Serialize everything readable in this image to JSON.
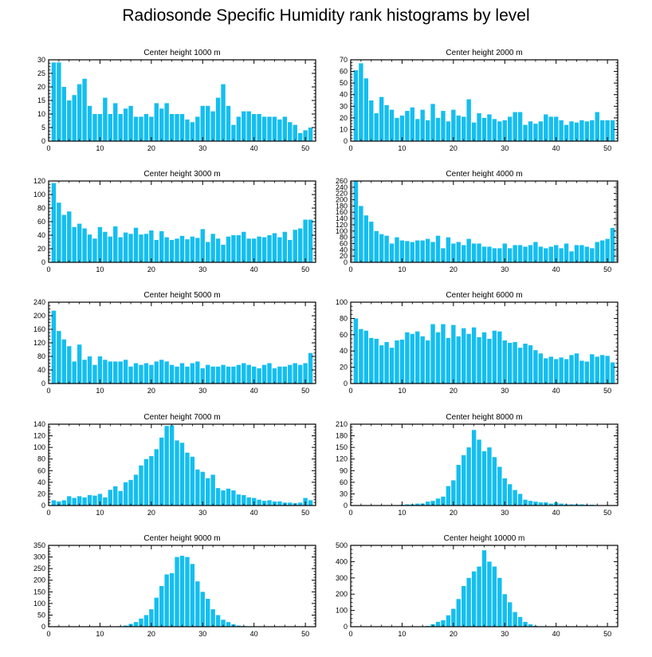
{
  "title": "Radiosonde Specific Humidity rank histograms by level",
  "colors": {
    "bar": "#14BEF0",
    "axis": "#000000"
  },
  "chart_data": [
    {
      "type": "bar",
      "title": "Center height 1000 m",
      "ylim": [
        0,
        30
      ],
      "xlim": [
        0,
        52
      ],
      "yticks": [
        0,
        5,
        10,
        15,
        20,
        25,
        30
      ],
      "xticks": [
        0,
        10,
        20,
        30,
        40,
        50
      ],
      "x": [
        1,
        2,
        3,
        4,
        5,
        6,
        7,
        8,
        9,
        10,
        11,
        12,
        13,
        14,
        15,
        16,
        17,
        18,
        19,
        20,
        21,
        22,
        23,
        24,
        25,
        26,
        27,
        28,
        29,
        30,
        31,
        32,
        33,
        34,
        35,
        36,
        37,
        38,
        39,
        40,
        41,
        42,
        43,
        44,
        45,
        46,
        47,
        48,
        49,
        50,
        51
      ],
      "values": [
        29,
        29,
        20,
        15,
        17,
        21,
        23,
        13,
        10,
        10,
        16,
        10,
        14,
        10,
        12,
        13,
        9,
        9,
        10,
        9,
        14,
        12,
        14,
        10,
        10,
        10,
        8,
        7,
        9,
        13,
        13,
        11,
        16,
        21,
        13,
        6,
        9,
        11,
        11,
        10,
        10,
        9,
        9,
        9,
        8,
        9,
        7,
        6,
        3,
        4,
        5
      ]
    },
    {
      "type": "bar",
      "title": "Center height 2000 m",
      "ylim": [
        0,
        70
      ],
      "xlim": [
        0,
        52
      ],
      "yticks": [
        0,
        10,
        20,
        30,
        40,
        50,
        60,
        70
      ],
      "xticks": [
        0,
        10,
        20,
        30,
        40,
        50
      ],
      "x": [
        1,
        2,
        3,
        4,
        5,
        6,
        7,
        8,
        9,
        10,
        11,
        12,
        13,
        14,
        15,
        16,
        17,
        18,
        19,
        20,
        21,
        22,
        23,
        24,
        25,
        26,
        27,
        28,
        29,
        30,
        31,
        32,
        33,
        34,
        35,
        36,
        37,
        38,
        39,
        40,
        41,
        42,
        43,
        44,
        45,
        46,
        47,
        48,
        49,
        50,
        51
      ],
      "values": [
        61,
        67,
        54,
        35,
        24,
        38,
        31,
        27,
        20,
        22,
        26,
        29,
        19,
        27,
        18,
        32,
        20,
        26,
        17,
        27,
        22,
        21,
        36,
        16,
        24,
        20,
        23,
        19,
        17,
        18,
        21,
        25,
        25,
        14,
        17,
        15,
        17,
        23,
        21,
        21,
        18,
        14,
        17,
        16,
        18,
        17,
        18,
        25,
        18,
        18,
        18
      ]
    },
    {
      "type": "bar",
      "title": "Center height 3000 m",
      "ylim": [
        0,
        120
      ],
      "xlim": [
        0,
        52
      ],
      "yticks": [
        0,
        20,
        40,
        60,
        80,
        100,
        120
      ],
      "xticks": [
        0,
        10,
        20,
        30,
        40,
        50
      ],
      "x": [
        1,
        2,
        3,
        4,
        5,
        6,
        7,
        8,
        9,
        10,
        11,
        12,
        13,
        14,
        15,
        16,
        17,
        18,
        19,
        20,
        21,
        22,
        23,
        24,
        25,
        26,
        27,
        28,
        29,
        30,
        31,
        32,
        33,
        34,
        35,
        36,
        37,
        38,
        39,
        40,
        41,
        42,
        43,
        44,
        45,
        46,
        47,
        48,
        49,
        50,
        51
      ],
      "values": [
        117,
        88,
        70,
        75,
        52,
        57,
        50,
        41,
        35,
        52,
        45,
        38,
        53,
        37,
        44,
        42,
        51,
        41,
        42,
        47,
        33,
        46,
        37,
        33,
        35,
        39,
        34,
        38,
        36,
        49,
        30,
        42,
        35,
        26,
        38,
        40,
        40,
        45,
        35,
        35,
        38,
        37,
        40,
        43,
        37,
        45,
        33,
        48,
        50,
        63,
        63
      ]
    },
    {
      "type": "bar",
      "title": "Center height 4000 m",
      "ylim": [
        0,
        260
      ],
      "xlim": [
        0,
        52
      ],
      "yticks": [
        0,
        20,
        40,
        60,
        80,
        100,
        120,
        140,
        160,
        180,
        200,
        220,
        240,
        260
      ],
      "xticks": [
        0,
        10,
        20,
        30,
        40,
        50
      ],
      "x": [
        1,
        2,
        3,
        4,
        5,
        6,
        7,
        8,
        9,
        10,
        11,
        12,
        13,
        14,
        15,
        16,
        17,
        18,
        19,
        20,
        21,
        22,
        23,
        24,
        25,
        26,
        27,
        28,
        29,
        30,
        31,
        32,
        33,
        34,
        35,
        36,
        37,
        38,
        39,
        40,
        41,
        42,
        43,
        44,
        45,
        46,
        47,
        48,
        49,
        50,
        51
      ],
      "values": [
        260,
        180,
        150,
        130,
        100,
        90,
        85,
        60,
        80,
        70,
        68,
        65,
        70,
        70,
        75,
        65,
        85,
        45,
        80,
        60,
        65,
        55,
        75,
        60,
        60,
        50,
        50,
        45,
        45,
        60,
        45,
        55,
        55,
        50,
        55,
        65,
        50,
        45,
        50,
        55,
        45,
        60,
        35,
        55,
        55,
        50,
        45,
        65,
        70,
        75,
        110
      ]
    },
    {
      "type": "bar",
      "title": "Center height 5000 m",
      "ylim": [
        0,
        240
      ],
      "xlim": [
        0,
        52
      ],
      "yticks": [
        0,
        40,
        80,
        120,
        160,
        200,
        240
      ],
      "xticks": [
        0,
        10,
        20,
        30,
        40,
        50
      ],
      "x": [
        1,
        2,
        3,
        4,
        5,
        6,
        7,
        8,
        9,
        10,
        11,
        12,
        13,
        14,
        15,
        16,
        17,
        18,
        19,
        20,
        21,
        22,
        23,
        24,
        25,
        26,
        27,
        28,
        29,
        30,
        31,
        32,
        33,
        34,
        35,
        36,
        37,
        38,
        39,
        40,
        41,
        42,
        43,
        44,
        45,
        46,
        47,
        48,
        49,
        50,
        51
      ],
      "values": [
        215,
        155,
        130,
        110,
        65,
        115,
        70,
        80,
        55,
        80,
        70,
        65,
        65,
        65,
        70,
        50,
        60,
        55,
        60,
        55,
        65,
        70,
        65,
        55,
        50,
        60,
        50,
        60,
        65,
        45,
        55,
        50,
        50,
        55,
        50,
        50,
        55,
        60,
        55,
        50,
        45,
        55,
        60,
        45,
        50,
        50,
        55,
        60,
        55,
        60,
        90
      ]
    },
    {
      "type": "bar",
      "title": "Center height 6000 m",
      "ylim": [
        0,
        100
      ],
      "xlim": [
        0,
        52
      ],
      "yticks": [
        0,
        20,
        40,
        60,
        80,
        100
      ],
      "xticks": [
        0,
        10,
        20,
        30,
        40,
        50
      ],
      "x": [
        1,
        2,
        3,
        4,
        5,
        6,
        7,
        8,
        9,
        10,
        11,
        12,
        13,
        14,
        15,
        16,
        17,
        18,
        19,
        20,
        21,
        22,
        23,
        24,
        25,
        26,
        27,
        28,
        29,
        30,
        31,
        32,
        33,
        34,
        35,
        36,
        37,
        38,
        39,
        40,
        41,
        42,
        43,
        44,
        45,
        46,
        47,
        48,
        49,
        50,
        51
      ],
      "values": [
        80,
        67,
        65,
        56,
        55,
        47,
        51,
        44,
        53,
        54,
        63,
        61,
        64,
        58,
        53,
        73,
        63,
        73,
        56,
        72,
        58,
        68,
        61,
        69,
        57,
        63,
        55,
        65,
        64,
        53,
        50,
        51,
        44,
        49,
        47,
        41,
        37,
        31,
        33,
        30,
        32,
        30,
        35,
        37,
        28,
        27,
        36,
        33,
        35,
        34,
        26
      ]
    },
    {
      "type": "bar",
      "title": "Center height 7000 m",
      "ylim": [
        0,
        140
      ],
      "xlim": [
        0,
        52
      ],
      "yticks": [
        0,
        20,
        40,
        60,
        80,
        100,
        120,
        140
      ],
      "xticks": [
        0,
        10,
        20,
        30,
        40,
        50
      ],
      "x": [
        1,
        2,
        3,
        4,
        5,
        6,
        7,
        8,
        9,
        10,
        11,
        12,
        13,
        14,
        15,
        16,
        17,
        18,
        19,
        20,
        21,
        22,
        23,
        24,
        25,
        26,
        27,
        28,
        29,
        30,
        31,
        32,
        33,
        34,
        35,
        36,
        37,
        38,
        39,
        40,
        41,
        42,
        43,
        44,
        45,
        46,
        47,
        48,
        49,
        50,
        51
      ],
      "values": [
        9,
        7,
        9,
        16,
        13,
        16,
        14,
        18,
        17,
        20,
        14,
        27,
        33,
        25,
        40,
        44,
        53,
        69,
        80,
        85,
        97,
        117,
        137,
        138,
        112,
        108,
        91,
        84,
        62,
        58,
        47,
        53,
        30,
        26,
        29,
        26,
        19,
        18,
        14,
        13,
        10,
        8,
        9,
        7,
        7,
        5,
        5,
        4,
        5,
        13,
        9
      ]
    },
    {
      "type": "bar",
      "title": "Center height 8000 m",
      "ylim": [
        0,
        210
      ],
      "xlim": [
        0,
        52
      ],
      "yticks": [
        0,
        30,
        60,
        90,
        120,
        150,
        180,
        210
      ],
      "xticks": [
        0,
        10,
        20,
        30,
        40,
        50
      ],
      "x": [
        1,
        2,
        3,
        4,
        5,
        6,
        7,
        8,
        9,
        10,
        11,
        12,
        13,
        14,
        15,
        16,
        17,
        18,
        19,
        20,
        21,
        22,
        23,
        24,
        25,
        26,
        27,
        28,
        29,
        30,
        31,
        32,
        33,
        34,
        35,
        36,
        37,
        38,
        39,
        40,
        41,
        42,
        43,
        44,
        45,
        46,
        47,
        48,
        49,
        50,
        51
      ],
      "values": [
        0,
        0,
        0,
        0,
        0,
        0,
        0,
        0,
        0,
        2,
        3,
        3,
        5,
        5,
        10,
        12,
        18,
        23,
        50,
        65,
        105,
        130,
        150,
        195,
        170,
        140,
        150,
        125,
        100,
        70,
        55,
        40,
        30,
        15,
        12,
        10,
        8,
        8,
        5,
        8,
        5,
        3,
        3,
        3,
        3,
        2,
        2,
        1,
        1,
        0,
        0
      ]
    },
    {
      "type": "bar",
      "title": "Center height 9000 m",
      "ylim": [
        0,
        350
      ],
      "xlim": [
        0,
        52
      ],
      "yticks": [
        0,
        50,
        100,
        150,
        200,
        250,
        300,
        350
      ],
      "xticks": [
        0,
        10,
        20,
        30,
        40,
        50
      ],
      "x": [
        1,
        2,
        3,
        4,
        5,
        6,
        7,
        8,
        9,
        10,
        11,
        12,
        13,
        14,
        15,
        16,
        17,
        18,
        19,
        20,
        21,
        22,
        23,
        24,
        25,
        26,
        27,
        28,
        29,
        30,
        31,
        32,
        33,
        34,
        35,
        36,
        37,
        38,
        39,
        40,
        41,
        42,
        43,
        44,
        45,
        46,
        47,
        48,
        49,
        50,
        51
      ],
      "values": [
        0,
        0,
        0,
        0,
        0,
        0,
        0,
        0,
        0,
        0,
        0,
        0,
        0,
        2,
        5,
        12,
        20,
        35,
        50,
        75,
        125,
        175,
        225,
        230,
        300,
        305,
        300,
        270,
        195,
        150,
        120,
        75,
        50,
        30,
        20,
        10,
        5,
        3,
        2,
        1,
        0,
        0,
        0,
        0,
        0,
        0,
        0,
        0,
        0,
        0,
        0
      ]
    },
    {
      "type": "bar",
      "title": "Center height 10000 m",
      "ylim": [
        0,
        500
      ],
      "xlim": [
        0,
        52
      ],
      "yticks": [
        0,
        100,
        200,
        300,
        400,
        500
      ],
      "xticks": [
        0,
        10,
        20,
        30,
        40,
        50
      ],
      "x": [
        1,
        2,
        3,
        4,
        5,
        6,
        7,
        8,
        9,
        10,
        11,
        12,
        13,
        14,
        15,
        16,
        17,
        18,
        19,
        20,
        21,
        22,
        23,
        24,
        25,
        26,
        27,
        28,
        29,
        30,
        31,
        32,
        33,
        34,
        35,
        36,
        37,
        38,
        39,
        40,
        41,
        42,
        43,
        44,
        45,
        46,
        47,
        48,
        49,
        50,
        51
      ],
      "values": [
        0,
        0,
        0,
        0,
        0,
        0,
        0,
        0,
        0,
        0,
        0,
        0,
        1,
        2,
        5,
        15,
        30,
        40,
        70,
        110,
        170,
        250,
        300,
        340,
        370,
        470,
        400,
        370,
        300,
        200,
        150,
        90,
        60,
        30,
        15,
        5,
        3,
        1,
        0,
        0,
        0,
        0,
        0,
        0,
        0,
        0,
        0,
        0,
        0,
        0,
        0
      ]
    }
  ]
}
